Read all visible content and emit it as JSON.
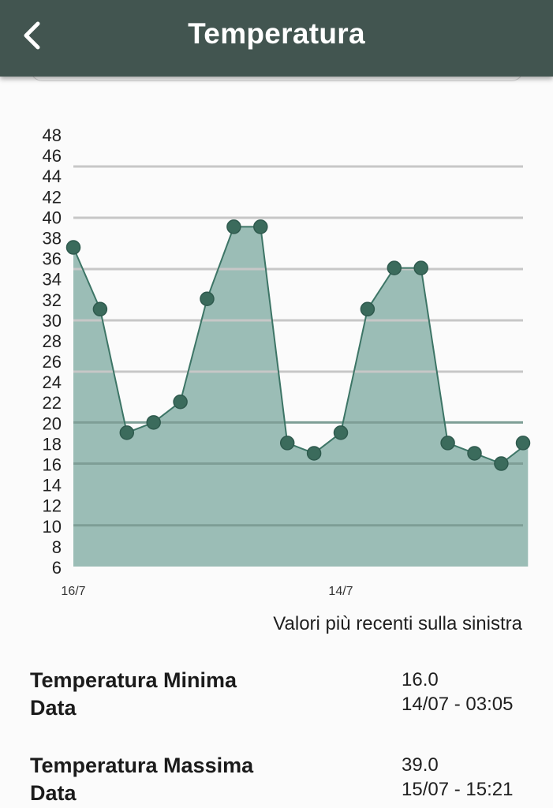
{
  "header": {
    "title": "Temperatura",
    "back_icon": "chevron-left-icon",
    "background": "#425550"
  },
  "chart_data": {
    "type": "area",
    "y_ticks": [
      6,
      8,
      10,
      12,
      14,
      16,
      18,
      20,
      22,
      24,
      26,
      28,
      30,
      32,
      34,
      36,
      38,
      40,
      42,
      44,
      46,
      48
    ],
    "x_tick_labels": [
      {
        "label": "16/7",
        "index": 0
      },
      {
        "label": "14/7",
        "index": 10
      }
    ],
    "values": [
      37,
      31,
      19,
      20,
      22,
      32,
      39,
      39,
      18,
      17,
      19,
      31,
      35,
      35,
      18,
      17,
      16,
      18
    ],
    "ylim": [
      6,
      48
    ],
    "grid": true,
    "fill_color": "#9bbdb6",
    "line_color": "#3d7566",
    "marker_color": "#3b6b5c"
  },
  "note": "Valori più recenti sulla sinistra",
  "stats": [
    {
      "label": "Temperatura Minima",
      "sub_label": "Data",
      "value": "16.0",
      "date": "14/07 - 03:05"
    },
    {
      "label": "Temperatura Massima",
      "sub_label": "Data",
      "value": "39.0",
      "date": "15/07 - 15:21"
    }
  ]
}
